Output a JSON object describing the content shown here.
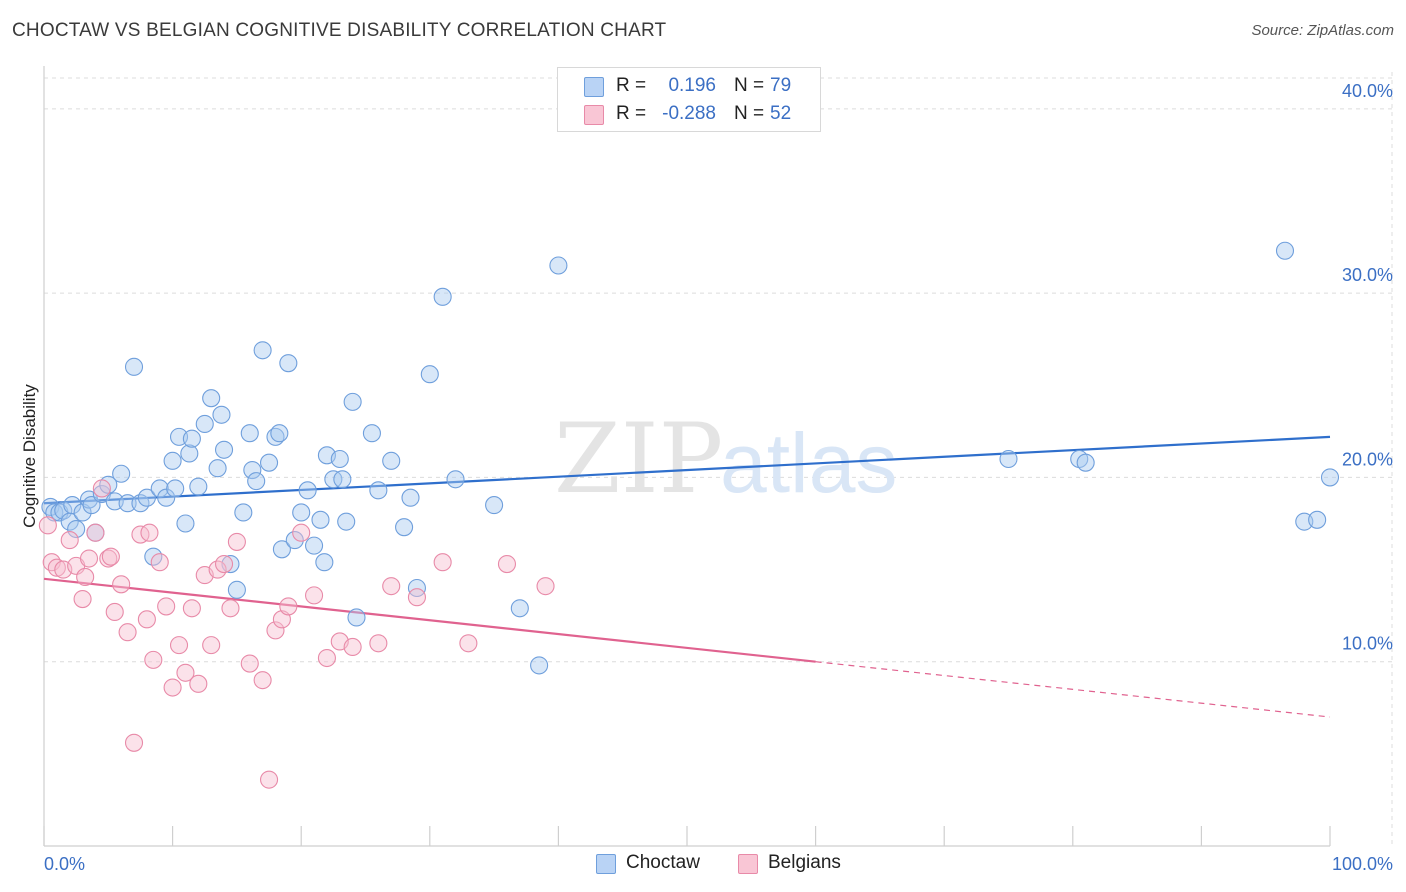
{
  "title": "CHOCTAW VS BELGIAN COGNITIVE DISABILITY CORRELATION CHART",
  "source": "Source: ZipAtlas.com",
  "watermark": {
    "zip": "ZIP",
    "atlas": "atlas"
  },
  "legend": {
    "r_label": "R =",
    "n_label": "N =",
    "rows": [
      {
        "r": "0.196",
        "n": "79",
        "swatch_fill": "#b9d3f5",
        "swatch_stroke": "#6f9fdc"
      },
      {
        "r": "-0.288",
        "n": "52",
        "swatch_fill": "#f9c6d5",
        "swatch_stroke": "#e88aa8"
      }
    ]
  },
  "colors": {
    "choctaw_fill": "#a9c9f0",
    "choctaw_stroke": "#6f9fdc",
    "choctaw_line": "#2f6fcc",
    "belgians_fill": "#f7bfd0",
    "belgians_stroke": "#e88aa8",
    "belgians_line": "#e0628f",
    "axis_label": "#3b6fc4",
    "grid": "#dcdcdc"
  },
  "chart_data": {
    "type": "scatter",
    "title": "CHOCTAW VS BELGIAN COGNITIVE DISABILITY CORRELATION CHART",
    "xlabel": "",
    "ylabel": "Cognitive Disability",
    "xlim": [
      0,
      100
    ],
    "ylim": [
      0,
      42
    ],
    "x_ticks": [
      "0.0%",
      "100.0%"
    ],
    "y_ticks": [
      {
        "value": 10,
        "label": "10.0%"
      },
      {
        "value": 20,
        "label": "20.0%"
      },
      {
        "value": 30,
        "label": "30.0%"
      },
      {
        "value": 40,
        "label": "40.0%"
      }
    ],
    "grid": true,
    "legend_position": "bottom",
    "series": [
      {
        "name": "Choctaw",
        "trend": {
          "x": [
            0,
            100
          ],
          "y": [
            18.6,
            22.2
          ]
        },
        "points": [
          [
            0.5,
            18.4
          ],
          [
            0.8,
            18.1
          ],
          [
            1.2,
            18.1
          ],
          [
            1.5,
            18.2
          ],
          [
            2.0,
            17.6
          ],
          [
            2.2,
            18.5
          ],
          [
            2.5,
            17.2
          ],
          [
            3.0,
            18.1
          ],
          [
            3.5,
            18.8
          ],
          [
            3.7,
            18.5
          ],
          [
            4.0,
            17.0
          ],
          [
            4.5,
            19.1
          ],
          [
            5.0,
            19.6
          ],
          [
            5.5,
            18.7
          ],
          [
            6.0,
            20.2
          ],
          [
            6.5,
            18.6
          ],
          [
            7.0,
            26.0
          ],
          [
            7.5,
            18.6
          ],
          [
            8.0,
            18.9
          ],
          [
            8.5,
            15.7
          ],
          [
            9.0,
            19.4
          ],
          [
            9.5,
            18.9
          ],
          [
            10.0,
            20.9
          ],
          [
            10.2,
            19.4
          ],
          [
            10.5,
            22.2
          ],
          [
            11.0,
            17.5
          ],
          [
            11.3,
            21.3
          ],
          [
            11.5,
            22.1
          ],
          [
            12.0,
            19.5
          ],
          [
            12.5,
            22.9
          ],
          [
            13.0,
            24.3
          ],
          [
            13.5,
            20.5
          ],
          [
            13.8,
            23.4
          ],
          [
            14.0,
            21.5
          ],
          [
            14.5,
            15.3
          ],
          [
            15.0,
            13.9
          ],
          [
            15.5,
            18.1
          ],
          [
            16.0,
            22.4
          ],
          [
            16.2,
            20.4
          ],
          [
            16.5,
            19.8
          ],
          [
            17.0,
            26.9
          ],
          [
            17.5,
            20.8
          ],
          [
            18.0,
            22.2
          ],
          [
            18.3,
            22.4
          ],
          [
            18.5,
            16.1
          ],
          [
            19.0,
            26.2
          ],
          [
            19.5,
            16.6
          ],
          [
            20.0,
            18.1
          ],
          [
            20.5,
            19.3
          ],
          [
            21.0,
            16.3
          ],
          [
            21.5,
            17.7
          ],
          [
            21.8,
            15.4
          ],
          [
            22.0,
            21.2
          ],
          [
            22.5,
            19.9
          ],
          [
            23.0,
            21.0
          ],
          [
            23.2,
            19.9
          ],
          [
            23.5,
            17.6
          ],
          [
            24.0,
            24.1
          ],
          [
            24.3,
            12.4
          ],
          [
            25.5,
            22.4
          ],
          [
            26.0,
            19.3
          ],
          [
            27.0,
            20.9
          ],
          [
            28.0,
            17.3
          ],
          [
            28.5,
            18.9
          ],
          [
            29.0,
            14.0
          ],
          [
            30.0,
            25.6
          ],
          [
            31.0,
            29.8
          ],
          [
            32.0,
            19.9
          ],
          [
            35.0,
            18.5
          ],
          [
            37.0,
            12.9
          ],
          [
            38.5,
            9.8
          ],
          [
            40.0,
            31.5
          ],
          [
            75.0,
            21.0
          ],
          [
            80.5,
            21.0
          ],
          [
            81.0,
            20.8
          ],
          [
            96.5,
            32.3
          ],
          [
            98.0,
            17.6
          ],
          [
            99.0,
            17.7
          ],
          [
            100.0,
            20.0
          ]
        ]
      },
      {
        "name": "Belgians",
        "trend": {
          "x": [
            0,
            60
          ],
          "y": [
            14.5,
            10.0
          ]
        },
        "trend_dashed": {
          "x": [
            60,
            100
          ],
          "y": [
            10.0,
            7.0
          ]
        },
        "points": [
          [
            0.3,
            17.4
          ],
          [
            0.6,
            15.4
          ],
          [
            1.0,
            15.1
          ],
          [
            1.5,
            15.0
          ],
          [
            2.0,
            16.6
          ],
          [
            2.5,
            15.2
          ],
          [
            3.0,
            13.4
          ],
          [
            3.2,
            14.6
          ],
          [
            3.5,
            15.6
          ],
          [
            4.0,
            17.0
          ],
          [
            4.5,
            19.4
          ],
          [
            5.0,
            15.6
          ],
          [
            5.5,
            12.7
          ],
          [
            6.0,
            14.2
          ],
          [
            6.5,
            11.6
          ],
          [
            7.0,
            5.6
          ],
          [
            7.5,
            16.9
          ],
          [
            8.0,
            12.3
          ],
          [
            8.5,
            10.1
          ],
          [
            9.0,
            15.4
          ],
          [
            9.5,
            13.0
          ],
          [
            10.0,
            8.6
          ],
          [
            10.5,
            10.9
          ],
          [
            11.0,
            9.4
          ],
          [
            11.5,
            12.9
          ],
          [
            12.0,
            8.8
          ],
          [
            12.5,
            14.7
          ],
          [
            13.0,
            10.9
          ],
          [
            13.5,
            15.0
          ],
          [
            14.0,
            15.3
          ],
          [
            14.5,
            12.9
          ],
          [
            15.0,
            16.5
          ],
          [
            16.0,
            9.9
          ],
          [
            17.0,
            9.0
          ],
          [
            17.5,
            3.6
          ],
          [
            18.0,
            11.7
          ],
          [
            18.5,
            12.3
          ],
          [
            19.0,
            13.0
          ],
          [
            20.0,
            17.0
          ],
          [
            21.0,
            13.6
          ],
          [
            22.0,
            10.2
          ],
          [
            23.0,
            11.1
          ],
          [
            24.0,
            10.8
          ],
          [
            26.0,
            11.0
          ],
          [
            27.0,
            14.1
          ],
          [
            29.0,
            13.5
          ],
          [
            31.0,
            15.4
          ],
          [
            33.0,
            11.0
          ],
          [
            36.0,
            15.3
          ],
          [
            39.0,
            14.1
          ],
          [
            5.2,
            15.7
          ],
          [
            8.2,
            17.0
          ]
        ]
      }
    ]
  },
  "bottom_legend": [
    {
      "label": "Choctaw"
    },
    {
      "label": "Belgians"
    }
  ]
}
